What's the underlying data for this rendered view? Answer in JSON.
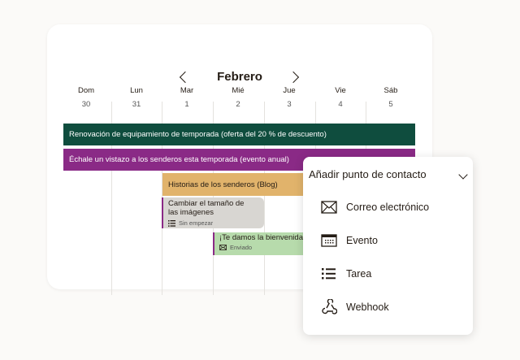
{
  "calendar": {
    "month": "Febrero",
    "days": [
      {
        "name": "Dom",
        "num": "30"
      },
      {
        "name": "Lun",
        "num": "31"
      },
      {
        "name": "Mar",
        "num": "1"
      },
      {
        "name": "Mié",
        "num": "2"
      },
      {
        "name": "Jue",
        "num": "3"
      },
      {
        "name": "Vie",
        "num": "4"
      },
      {
        "name": "Sáb",
        "num": "5"
      }
    ],
    "events": [
      {
        "title": "Renovación de equipamiento de temporada (oferta del 20 % de descuento)",
        "color": "#0f4d3e"
      },
      {
        "title": "Échale un vistazo a los senderos esta temporada (evento anual)",
        "color": "#8a2a86"
      },
      {
        "title": "Historias de los senderos (Blog)",
        "color": "#e1b36b"
      },
      {
        "title": "Cambiar el tamaño de las imágenes",
        "status": "Sin empezar",
        "icon": "list-icon",
        "color": "#d8d6d2"
      },
      {
        "title": "¡Te damos la bienvenida a",
        "status": "Enviado",
        "icon": "envelope-icon",
        "color": "#b7dbac"
      }
    ]
  },
  "dropdown": {
    "title": "Añadir punto de contacto",
    "items": [
      {
        "label": "Correo electrónico",
        "icon": "envelope-icon"
      },
      {
        "label": "Evento",
        "icon": "calendar-icon"
      },
      {
        "label": "Tarea",
        "icon": "list-icon"
      },
      {
        "label": "Webhook",
        "icon": "webhook-icon"
      }
    ]
  }
}
